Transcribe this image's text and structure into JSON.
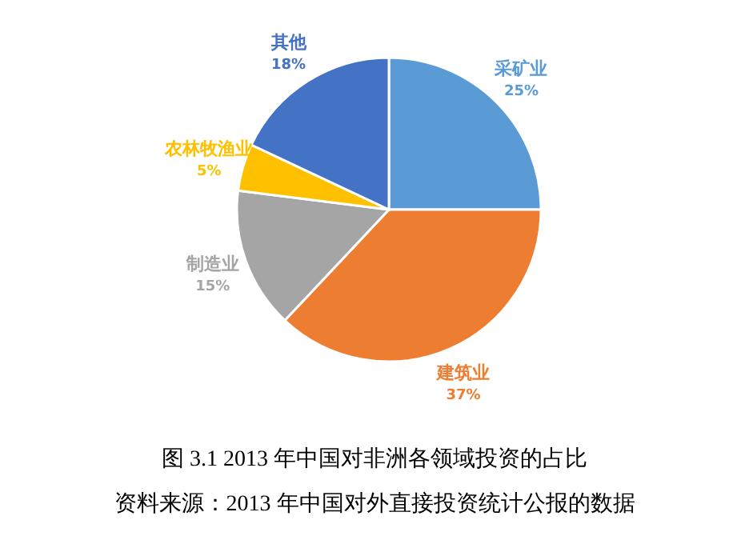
{
  "chart_data": {
    "type": "pie",
    "title": "图 3.1   2013 年中国对非洲各领域投资的占比",
    "categories": [
      "采矿业",
      "建筑业",
      "制造业",
      "农林牧渔业",
      "其他"
    ],
    "values": [
      25,
      37,
      15,
      5,
      18
    ],
    "colors": [
      "#5b9bd5",
      "#ed7d31",
      "#a5a5a5",
      "#ffc000",
      "#4472c4"
    ],
    "value_labels": [
      "25%",
      "37%",
      "15%",
      "5%",
      "18%"
    ],
    "legend": false,
    "annotations": [
      "资料来源：2013 年中国对外直接投资统计公报的数据"
    ]
  }
}
